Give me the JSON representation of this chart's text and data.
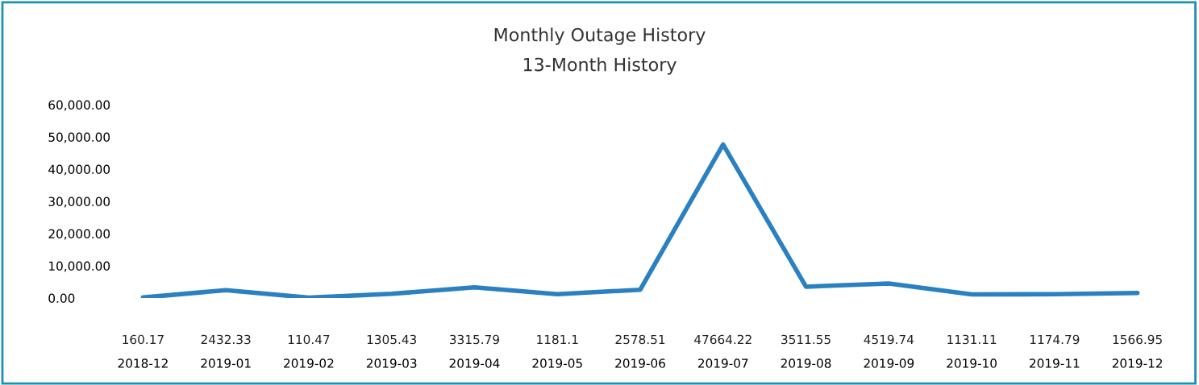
{
  "chart_data": {
    "type": "line",
    "title": "Monthly Outage History",
    "subtitle": "13-Month History",
    "categories": [
      "2018-12",
      "2019-01",
      "2019-02",
      "2019-03",
      "2019-04",
      "2019-05",
      "2019-06",
      "2019-07",
      "2019-08",
      "2019-09",
      "2019-10",
      "2019-11",
      "2019-12"
    ],
    "series": [
      {
        "color": "#2a80c0",
        "values": [
          160.17,
          2432.33,
          110.47,
          1305.43,
          3315.79,
          1181.1,
          2578.51,
          47664.22,
          3511.55,
          4519.74,
          1131.11,
          1174.79,
          1566.95
        ]
      }
    ],
    "ylim": [
      0,
      60000
    ],
    "yticks": [
      {
        "value": 0,
        "label": "0.00"
      },
      {
        "value": 10000,
        "label": "10,000.00"
      },
      {
        "value": 20000,
        "label": "20,000.00"
      },
      {
        "value": 30000,
        "label": "30,000.00"
      },
      {
        "value": 40000,
        "label": "40,000.00"
      },
      {
        "value": 50000,
        "label": "50,000.00"
      },
      {
        "value": 60000,
        "label": "60,000.00"
      }
    ],
    "data_labels": true,
    "grid": false,
    "legend": false,
    "marker": "none",
    "line_style": "solid"
  }
}
